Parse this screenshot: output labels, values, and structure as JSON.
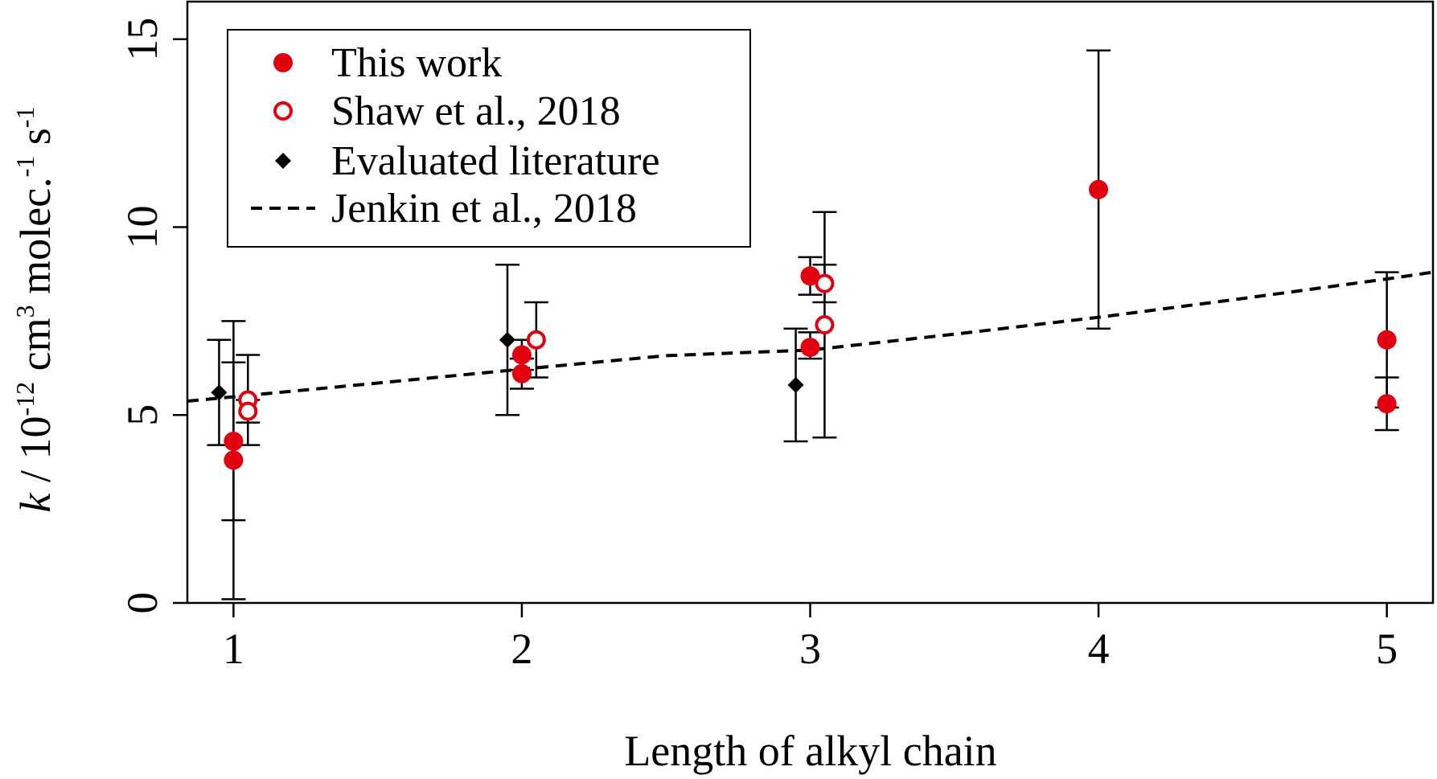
{
  "colors": {
    "red": "#e0000f",
    "black": "#000000"
  },
  "chart_data": {
    "type": "scatter",
    "xlabel": "Length of alkyl chain",
    "ylabel": {
      "k": "k",
      "slash": " / 10",
      "exp1": "-12",
      "cm": " cm",
      "exp2": "3",
      "molec": " molec.",
      "exp3": "-1",
      "s": " s",
      "exp4": "-1"
    },
    "xlim": [
      0.84,
      5.16
    ],
    "ylim": [
      0,
      16
    ],
    "xticks": [
      1,
      2,
      3,
      4,
      5
    ],
    "yticks": [
      0,
      5,
      10,
      15
    ],
    "legend_position": "top-left",
    "legend": [
      {
        "label": "This work",
        "marker": "filled-circle"
      },
      {
        "label": "Shaw et al., 2018",
        "marker": "open-circle"
      },
      {
        "label": "Evaluated literature",
        "marker": "diamond"
      },
      {
        "label": "Jenkin et al., 2018",
        "marker": "dashed-line"
      }
    ],
    "series": [
      {
        "name": "This work",
        "marker": "filled-circle",
        "points": [
          {
            "x": 1.0,
            "y": 4.3,
            "ylo": 0.1,
            "yhi": 7.5
          },
          {
            "x": 1.0,
            "y": 3.8,
            "ylo": 2.2,
            "yhi": 6.4
          },
          {
            "x": 2.0,
            "y": 6.6,
            "ylo": 6.2,
            "yhi": 7.0
          },
          {
            "x": 2.0,
            "y": 6.1,
            "ylo": 5.7,
            "yhi": 6.5
          },
          {
            "x": 3.0,
            "y": 8.7,
            "ylo": 8.2,
            "yhi": 9.2
          },
          {
            "x": 3.0,
            "y": 6.8,
            "ylo": 6.5,
            "yhi": 7.2
          },
          {
            "x": 4.0,
            "y": 11.0,
            "ylo": 7.3,
            "yhi": 14.7
          },
          {
            "x": 5.0,
            "y": 7.0,
            "ylo": 5.2,
            "yhi": 8.8
          },
          {
            "x": 5.0,
            "y": 5.3,
            "ylo": 4.6,
            "yhi": 6.0
          }
        ]
      },
      {
        "name": "Shaw et al., 2018",
        "marker": "open-circle",
        "points": [
          {
            "x": 1.05,
            "y": 5.4,
            "ylo": 4.2,
            "yhi": 6.6
          },
          {
            "x": 1.05,
            "y": 5.1,
            "ylo": 4.8,
            "yhi": 5.4
          },
          {
            "x": 2.05,
            "y": 7.0,
            "ylo": 6.0,
            "yhi": 8.0
          },
          {
            "x": 3.05,
            "y": 8.5,
            "ylo": 8.0,
            "yhi": 9.0
          },
          {
            "x": 3.05,
            "y": 7.4,
            "ylo": 4.4,
            "yhi": 10.4
          }
        ]
      },
      {
        "name": "Evaluated literature",
        "marker": "diamond",
        "points": [
          {
            "x": 0.95,
            "y": 5.6,
            "ylo": 4.2,
            "yhi": 7.0
          },
          {
            "x": 1.95,
            "y": 7.0,
            "ylo": 5.0,
            "yhi": 9.0
          },
          {
            "x": 2.95,
            "y": 5.8,
            "ylo": 4.3,
            "yhi": 7.3
          }
        ]
      },
      {
        "name": "Jenkin et al., 2018",
        "marker": "dashed-line",
        "x": [
          0.84,
          1.5,
          2.0,
          2.5,
          3.0,
          3.5,
          4.0,
          4.5,
          5.0,
          5.16
        ],
        "y": [
          5.37,
          5.85,
          6.22,
          6.58,
          6.73,
          7.15,
          7.6,
          8.1,
          8.62,
          8.8
        ]
      }
    ]
  }
}
